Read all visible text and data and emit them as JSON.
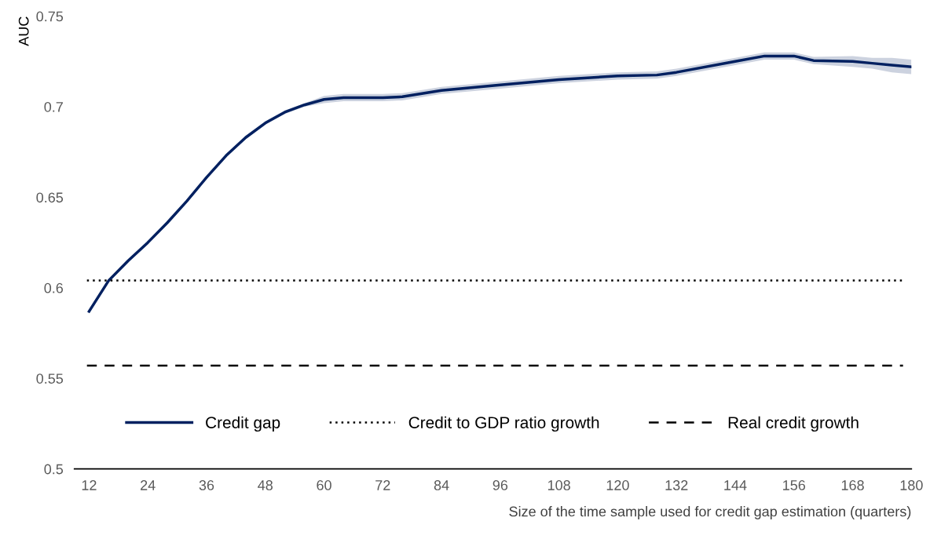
{
  "chart_data": {
    "type": "line",
    "xlabel": "Size of the time sample used for credit gap estimation (quarters)",
    "ylabel": "AUC",
    "x": [
      12,
      16,
      20,
      24,
      28,
      32,
      36,
      40,
      44,
      48,
      52,
      56,
      60,
      64,
      72,
      76,
      84,
      96,
      108,
      120,
      128,
      132,
      144,
      150,
      156,
      160,
      168,
      172,
      176,
      180
    ],
    "series": [
      {
        "name": "Credit gap",
        "color": "#002060",
        "values": [
          0.587,
          0.604,
          0.615,
          0.625,
          0.636,
          0.648,
          0.661,
          0.673,
          0.683,
          0.691,
          0.697,
          0.701,
          0.704,
          0.705,
          0.705,
          0.7055,
          0.709,
          0.712,
          0.715,
          0.717,
          0.7175,
          0.719,
          0.725,
          0.728,
          0.728,
          0.7255,
          0.725,
          0.724,
          0.723,
          0.722
        ],
        "lower": [
          0.586,
          0.603,
          0.614,
          0.624,
          0.635,
          0.647,
          0.66,
          0.672,
          0.682,
          0.69,
          0.696,
          0.7,
          0.702,
          0.703,
          0.703,
          0.7035,
          0.707,
          0.71,
          0.713,
          0.715,
          0.7155,
          0.717,
          0.723,
          0.726,
          0.726,
          0.7235,
          0.722,
          0.721,
          0.719,
          0.718
        ],
        "upper": [
          0.588,
          0.605,
          0.616,
          0.626,
          0.637,
          0.649,
          0.662,
          0.674,
          0.684,
          0.692,
          0.698,
          0.702,
          0.706,
          0.707,
          0.707,
          0.7075,
          0.711,
          0.714,
          0.717,
          0.719,
          0.7195,
          0.721,
          0.727,
          0.73,
          0.73,
          0.7275,
          0.728,
          0.727,
          0.727,
          0.726
        ]
      }
    ],
    "ref_lines": [
      {
        "axis": "y",
        "value": 0.604,
        "label": "Credit to GDP ratio growth",
        "color": "#000000",
        "line_style": "dotted"
      },
      {
        "axis": "y",
        "value": 0.557,
        "label": "Real credit growth",
        "color": "#000000",
        "line_style": "dashed"
      }
    ],
    "xlim": [
      9,
      180
    ],
    "ylim": [
      0.5,
      0.75
    ],
    "xticks": [
      12,
      24,
      36,
      48,
      60,
      72,
      84,
      96,
      108,
      120,
      132,
      144,
      156,
      168,
      180
    ],
    "yticks": [
      0.5,
      0.55,
      0.6,
      0.65,
      0.7,
      0.75
    ],
    "grid": false,
    "legend": "bottom",
    "line_style": "solid",
    "marker": "none"
  }
}
